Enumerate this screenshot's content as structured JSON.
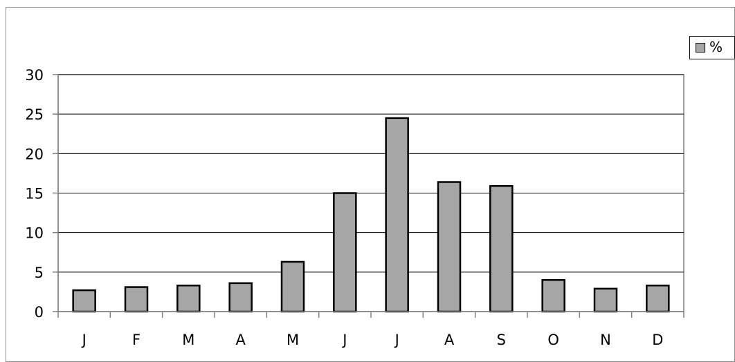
{
  "chart_data": {
    "type": "bar",
    "categories": [
      "J",
      "F",
      "M",
      "A",
      "M",
      "J",
      "J",
      "A",
      "S",
      "O",
      "N",
      "D"
    ],
    "series": [
      {
        "name": "%",
        "values": [
          2.7,
          3.1,
          3.3,
          3.6,
          6.3,
          15.0,
          24.5,
          16.4,
          15.9,
          4.0,
          2.9,
          3.3
        ]
      }
    ],
    "y_ticks": [
      "0",
      "5",
      "10",
      "15",
      "20",
      "25",
      "30"
    ],
    "ylim": [
      0,
      30
    ],
    "grid": true,
    "legend_position": "top-right",
    "colors": {
      "bar_fill": "#a6a6a6",
      "bar_stroke": "#000000",
      "grid": "#000000",
      "axis": "#808080"
    }
  }
}
